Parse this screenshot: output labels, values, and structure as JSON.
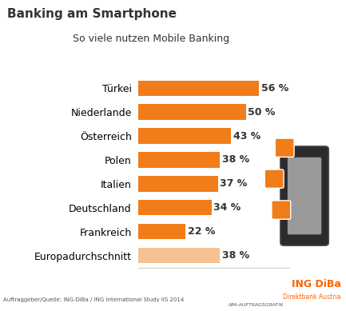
{
  "chart_data": {
    "type": "bar",
    "orientation": "horizontal",
    "title": "Banking am Smartphone",
    "subtitle": "So viele nutzen Mobile Banking",
    "categories": [
      "Türkei",
      "Niederlande",
      "Österreich",
      "Polen",
      "Italien",
      "Deutschland",
      "Frankreich",
      "Europadurchschnitt"
    ],
    "values": [
      56,
      50,
      43,
      38,
      37,
      34,
      22,
      38
    ],
    "value_labels": [
      "56 %",
      "50 %",
      "43 %",
      "38 %",
      "37 %",
      "34 %",
      "22 %",
      "38 %"
    ],
    "colors": [
      "#f07d1a",
      "#f07d1a",
      "#f07d1a",
      "#f07d1a",
      "#f07d1a",
      "#f07d1a",
      "#f07d1a",
      "#f6c294"
    ],
    "xlim": [
      0,
      70
    ],
    "data_labels": true,
    "tick_labels": "y",
    "grid": false,
    "source": "Auftraggeber/Quelle: ING-DiBa / ING International Study IIS 2014",
    "credit": "APA-AUFTRAGSGRAFIK",
    "logo": {
      "name": "ING DiBa",
      "tagline": "Direktbank Austria"
    }
  }
}
